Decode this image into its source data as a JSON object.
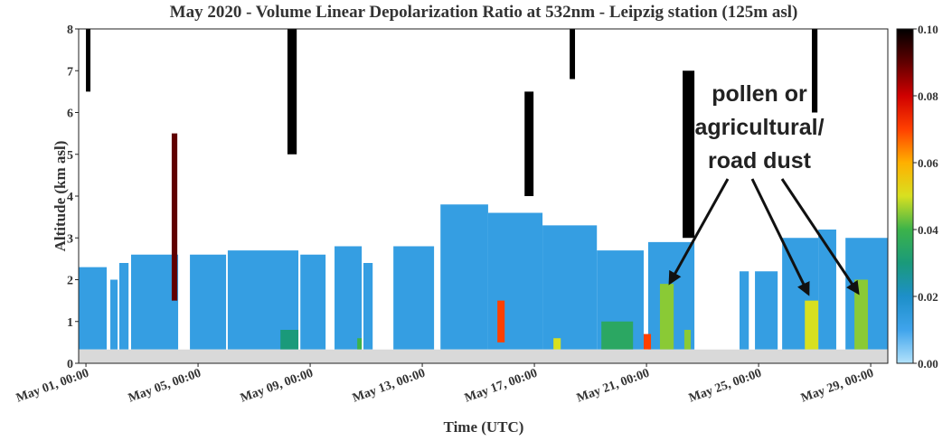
{
  "chart_data": {
    "type": "heatmap",
    "title": "May 2020 - Volume Linear Depolarization Ratio at 532nm - Leipzig station (125m asl)",
    "x_label": "Time (UTC)",
    "y_label": "Altitude (km asl)",
    "xlim": [
      -0.26,
      28.61
    ],
    "xticks": [
      {
        "value": 0,
        "label": "May 01, 00:00"
      },
      {
        "value": 4,
        "label": "May 05, 00:00"
      },
      {
        "value": 8,
        "label": "May 09, 00:00"
      },
      {
        "value": 12,
        "label": "May 13, 00:00"
      },
      {
        "value": 16,
        "label": "May 17, 00:00"
      },
      {
        "value": 20,
        "label": "May 21, 00:00"
      },
      {
        "value": 24,
        "label": "May 25, 00:00"
      },
      {
        "value": 28,
        "label": "May 29, 00:00"
      }
    ],
    "ylim": [
      0,
      8
    ],
    "yticks": [
      0,
      1,
      2,
      3,
      4,
      5,
      6,
      7,
      8
    ],
    "ground_top": 0.33,
    "colorbar": {
      "lim": [
        0,
        0.1
      ],
      "ticks": [
        {
          "value": 0,
          "label": "0.00"
        },
        {
          "value": 0.02,
          "label": "0.02"
        },
        {
          "value": 0.04,
          "label": "0.04"
        },
        {
          "value": 0.06,
          "label": "0.06"
        },
        {
          "value": 0.08,
          "label": "0.08"
        },
        {
          "value": 0.1,
          "label": "0.10"
        }
      ],
      "colors": [
        "#b3e2fb",
        "#3fa4ec",
        "#1d8fc9",
        "#1a9a7a",
        "#3cb34a",
        "#d8e020",
        "#ffb000",
        "#ff4000",
        "#d00000",
        "#600000",
        "#000000"
      ]
    },
    "cells": [
      {
        "x": [
          -0.26,
          0.74
        ],
        "y": [
          0.33,
          2.3
        ],
        "value": 0.013
      },
      {
        "x": [
          0.87,
          1.13
        ],
        "y": [
          0.33,
          2.0
        ],
        "value": 0.013
      },
      {
        "x": [
          1.19,
          1.52
        ],
        "y": [
          0.33,
          2.4
        ],
        "value": 0.013
      },
      {
        "x": [
          1.61,
          3.29
        ],
        "y": [
          0.33,
          2.6
        ],
        "value": 0.013
      },
      {
        "x": [
          3.71,
          5.0
        ],
        "y": [
          0.33,
          2.6
        ],
        "value": 0.013
      },
      {
        "x": [
          5.06,
          7.58
        ],
        "y": [
          0.33,
          2.7
        ],
        "value": 0.013
      },
      {
        "x": [
          7.65,
          8.55
        ],
        "y": [
          0.33,
          2.6
        ],
        "value": 0.013
      },
      {
        "x": [
          8.87,
          9.84
        ],
        "y": [
          0.33,
          2.8
        ],
        "value": 0.013
      },
      {
        "x": [
          9.9,
          10.23
        ],
        "y": [
          0.33,
          2.4
        ],
        "value": 0.013
      },
      {
        "x": [
          10.97,
          12.42
        ],
        "y": [
          0.33,
          2.8
        ],
        "value": 0.013
      },
      {
        "x": [
          12.65,
          14.35
        ],
        "y": [
          0.33,
          3.8
        ],
        "value": 0.013
      },
      {
        "x": [
          14.35,
          16.29
        ],
        "y": [
          0.33,
          3.6
        ],
        "value": 0.013
      },
      {
        "x": [
          16.29,
          18.23
        ],
        "y": [
          0.33,
          3.3
        ],
        "value": 0.013
      },
      {
        "x": [
          18.23,
          19.9
        ],
        "y": [
          0.33,
          2.7
        ],
        "value": 0.013
      },
      {
        "x": [
          20.06,
          21.71
        ],
        "y": [
          0.33,
          2.9
        ],
        "value": 0.013
      },
      {
        "x": [
          23.32,
          23.65
        ],
        "y": [
          0.33,
          2.2
        ],
        "value": 0.013
      },
      {
        "x": [
          23.87,
          24.68
        ],
        "y": [
          0.33,
          2.2
        ],
        "value": 0.013
      },
      {
        "x": [
          24.84,
          26.13
        ],
        "y": [
          0.33,
          3.0
        ],
        "value": 0.013
      },
      {
        "x": [
          26.13,
          26.77
        ],
        "y": [
          0.33,
          3.2
        ],
        "value": 0.013
      },
      {
        "x": [
          27.1,
          28.61
        ],
        "y": [
          0.33,
          3.0
        ],
        "value": 0.013
      },
      {
        "x": [
          6.94,
          7.58
        ],
        "y": [
          0.33,
          0.8
        ],
        "value": 0.03
      },
      {
        "x": [
          9.68,
          9.84
        ],
        "y": [
          0.33,
          0.6
        ],
        "value": 0.04
      },
      {
        "x": [
          14.68,
          14.94
        ],
        "y": [
          0.5,
          1.5
        ],
        "value": 0.07
      },
      {
        "x": [
          16.68,
          16.94
        ],
        "y": [
          0.33,
          0.6
        ],
        "value": 0.05
      },
      {
        "x": [
          18.39,
          19.52
        ],
        "y": [
          0.33,
          1.0
        ],
        "value": 0.035
      },
      {
        "x": [
          19.9,
          20.16
        ],
        "y": [
          0.33,
          0.7
        ],
        "value": 0.07
      },
      {
        "x": [
          20.48,
          20.97
        ],
        "y": [
          0.33,
          1.9
        ],
        "value": 0.045
      },
      {
        "x": [
          21.35,
          21.58
        ],
        "y": [
          0.33,
          0.8
        ],
        "value": 0.045
      },
      {
        "x": [
          25.65,
          26.13
        ],
        "y": [
          0.33,
          1.5
        ],
        "value": 0.05
      },
      {
        "x": [
          27.42,
          27.9
        ],
        "y": [
          0.33,
          2.0
        ],
        "value": 0.045
      },
      {
        "x": [
          3.06,
          3.26
        ],
        "y": [
          1.5,
          5.5
        ],
        "value": 0.09
      },
      {
        "x": [
          7.19,
          7.52
        ],
        "y": [
          5.0,
          8.0
        ],
        "value": 0.1
      },
      {
        "x": [
          15.65,
          15.97
        ],
        "y": [
          4.0,
          6.5
        ],
        "value": 0.1
      },
      {
        "x": [
          17.26,
          17.45
        ],
        "y": [
          6.8,
          8.0
        ],
        "value": 0.1
      },
      {
        "x": [
          21.29,
          21.71
        ],
        "y": [
          3.0,
          7.0
        ],
        "value": 0.1
      },
      {
        "x": [
          25.9,
          26.1
        ],
        "y": [
          6.0,
          8.0
        ],
        "value": 0.1
      },
      {
        "x": [
          0,
          0.16
        ],
        "y": [
          6.5,
          8.0
        ],
        "value": 0.1
      }
    ],
    "annotation": [
      "pollen or",
      "agricultural/",
      "road dust"
    ]
  }
}
